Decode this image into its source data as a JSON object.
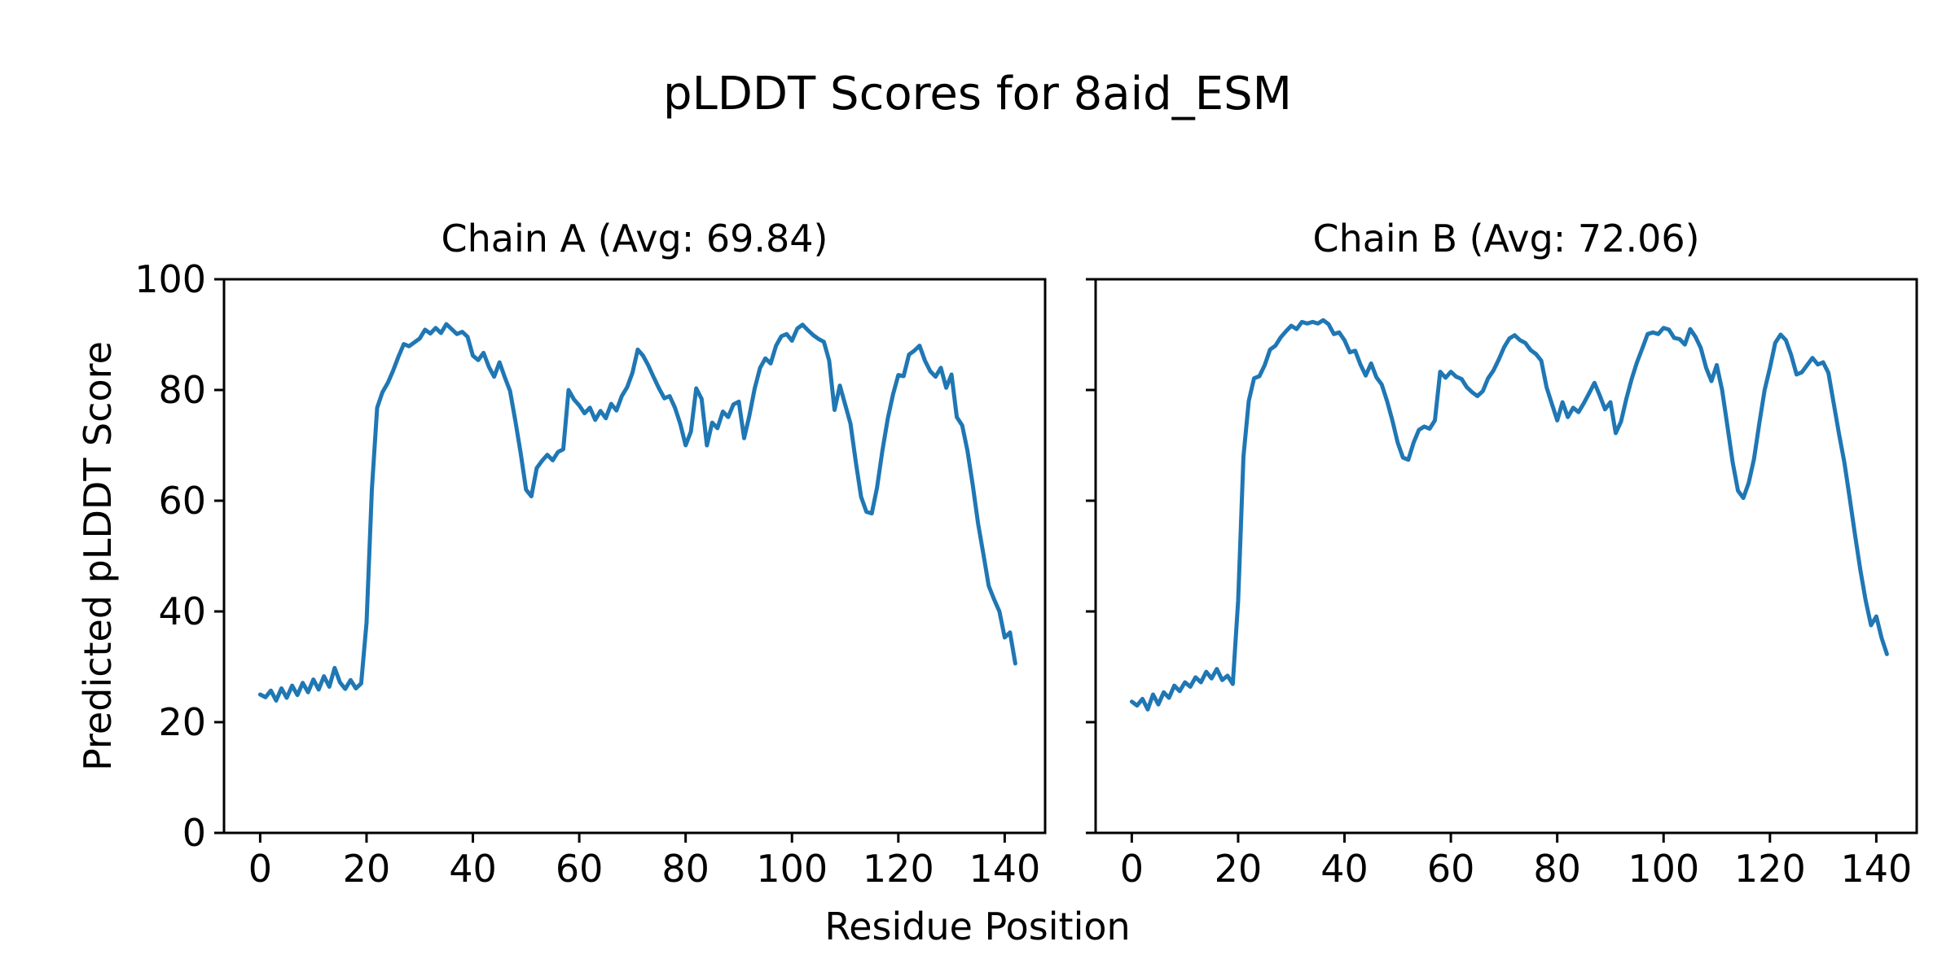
{
  "figure": {
    "suptitle": "pLDDT Scores for 8aid_ESM",
    "xlabel": "Residue Position",
    "ylabel": "Predicted pLDDT Score",
    "background_color": "#ffffff",
    "line_color": "#1f77b4",
    "spine_color": "#000000",
    "text_color": "#000000"
  },
  "chart_data": [
    {
      "type": "line",
      "title": "Chain A (Avg: 69.84)",
      "series_name": "Chain A pLDDT",
      "avg_label_value": 69.84,
      "x_start": 0,
      "xlim": [
        -6.8,
        147.6
      ],
      "ylim": [
        0,
        100
      ],
      "x_ticks": [
        0,
        20,
        40,
        60,
        80,
        100,
        120,
        140
      ],
      "y_ticks": [
        0,
        20,
        40,
        60,
        80,
        100
      ],
      "show_y_tick_labels": true,
      "grid": false,
      "values": [
        25.0,
        24.5,
        25.7,
        23.9,
        26.1,
        24.4,
        26.6,
        24.9,
        27.1,
        25.4,
        27.7,
        25.9,
        28.3,
        26.4,
        29.8,
        27.2,
        26.0,
        27.6,
        26.1,
        27.0,
        38.0,
        62.0,
        76.8,
        79.6,
        81.3,
        83.5,
        86.0,
        88.3,
        87.9,
        88.6,
        89.3,
        90.9,
        90.2,
        91.2,
        90.3,
        91.9,
        91.0,
        90.1,
        90.5,
        89.6,
        86.2,
        85.4,
        86.7,
        84.2,
        82.4,
        85.0,
        82.3,
        79.8,
        74.3,
        68.5,
        62.0,
        60.8,
        65.9,
        67.2,
        68.3,
        67.3,
        68.8,
        69.3,
        80.0,
        78.3,
        77.2,
        75.8,
        76.8,
        74.6,
        76.2,
        74.9,
        77.5,
        76.3,
        78.9,
        80.5,
        83.1,
        87.3,
        86.2,
        84.4,
        82.3,
        80.3,
        78.5,
        78.9,
        76.8,
        73.9,
        70.0,
        72.5,
        80.3,
        78.4,
        70.0,
        74.1,
        73.1,
        76.1,
        75.1,
        77.4,
        77.9,
        71.3,
        75.4,
        80.3,
        84.0,
        85.7,
        84.8,
        88.0,
        89.7,
        90.1,
        88.9,
        91.1,
        91.8,
        90.8,
        89.9,
        89.2,
        88.7,
        85.3,
        76.4,
        80.8,
        77.4,
        73.9,
        67.0,
        60.7,
        58.0,
        57.7,
        62.4,
        69.0,
        74.8,
        79.2,
        82.7,
        82.5,
        86.4,
        87.1,
        88.0,
        85.3,
        83.4,
        82.4,
        84.0,
        80.4,
        82.8,
        75.1,
        73.6,
        69.0,
        62.8,
        55.9,
        50.3,
        44.6,
        42.2,
        40.0,
        35.3,
        36.2,
        30.6
      ]
    },
    {
      "type": "line",
      "title": "Chain B (Avg: 72.06)",
      "series_name": "Chain B pLDDT",
      "avg_label_value": 72.06,
      "x_start": 0,
      "xlim": [
        -6.8,
        147.6
      ],
      "ylim": [
        0,
        100
      ],
      "x_ticks": [
        0,
        20,
        40,
        60,
        80,
        100,
        120,
        140
      ],
      "y_ticks": [
        0,
        20,
        40,
        60,
        80,
        100
      ],
      "show_y_tick_labels": false,
      "grid": false,
      "values": [
        23.7,
        23.0,
        24.2,
        22.3,
        25.0,
        23.2,
        25.4,
        24.4,
        26.6,
        25.6,
        27.2,
        26.4,
        28.1,
        27.2,
        29.1,
        27.9,
        29.6,
        27.6,
        28.4,
        26.9,
        42.0,
        68.0,
        78.0,
        82.1,
        82.5,
        84.5,
        87.3,
        88.0,
        89.5,
        90.6,
        91.6,
        91.0,
        92.3,
        92.0,
        92.3,
        92.0,
        92.6,
        91.9,
        90.1,
        90.4,
        89.0,
        86.8,
        87.1,
        84.6,
        82.6,
        84.8,
        82.3,
        81.0,
        78.0,
        74.5,
        70.5,
        67.8,
        67.4,
        70.5,
        72.8,
        73.4,
        73.0,
        74.5,
        83.3,
        82.2,
        83.3,
        82.4,
        82.0,
        80.5,
        79.6,
        78.9,
        79.8,
        82.1,
        83.5,
        85.5,
        87.7,
        89.3,
        89.9,
        89.0,
        88.5,
        87.2,
        86.5,
        85.3,
        80.5,
        77.5,
        74.5,
        77.8,
        75.1,
        76.8,
        76.0,
        77.6,
        79.4,
        81.3,
        79.0,
        76.5,
        77.8,
        72.2,
        74.3,
        78.4,
        82.0,
        85.0,
        87.5,
        90.1,
        90.4,
        90.1,
        91.2,
        90.9,
        89.4,
        89.2,
        88.2,
        91.0,
        89.6,
        87.6,
        84.0,
        81.6,
        84.5,
        80.0,
        73.5,
        66.9,
        61.8,
        60.5,
        63.2,
        67.5,
        74.0,
        80.0,
        84.0,
        88.5,
        90.0,
        89.0,
        86.3,
        82.8,
        83.2,
        84.5,
        85.8,
        84.6,
        85.0,
        83.1,
        77.5,
        72.0,
        66.9,
        60.5,
        53.8,
        47.5,
        42.0,
        37.5,
        39.1,
        35.2,
        32.3
      ]
    }
  ]
}
